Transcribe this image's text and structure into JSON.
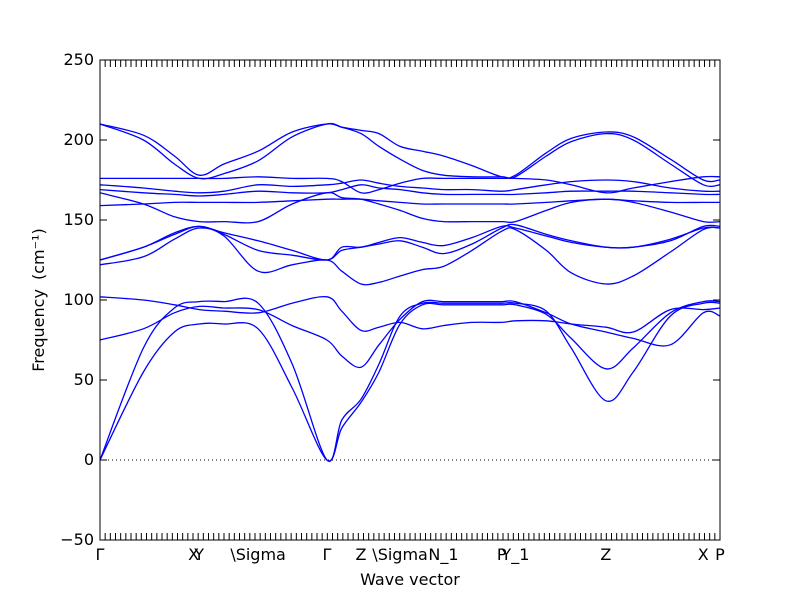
{
  "chart_data": {
    "type": "line",
    "xlabel": "Wave vector",
    "ylabel": "Frequency",
    "ylabel_unit": "(cm⁻¹)",
    "ylim": [
      -50,
      250
    ],
    "y_ticks": [
      -50,
      0,
      50,
      100,
      150,
      200,
      250
    ],
    "xlim": [
      0,
      1
    ],
    "high_symmetry_points": [
      {
        "label": "Γ",
        "x": 0.0
      },
      {
        "label": "X",
        "x": 0.151
      },
      {
        "label": "Y",
        "x": 0.16
      },
      {
        "label": "\\Sigma",
        "x": 0.255
      },
      {
        "label": "Γ",
        "x": 0.366
      },
      {
        "label": "Z",
        "x": 0.421
      },
      {
        "label": "\\Sigma",
        "x": 0.484
      },
      {
        "label": "N_1",
        "x": 0.554
      },
      {
        "label": "P",
        "x": 0.648
      },
      {
        "label": "Y_1",
        "x": 0.67
      },
      {
        "label": "Z",
        "x": 0.816
      },
      {
        "label": "X",
        "x": 0.973
      },
      {
        "label": "P",
        "x": 1.0
      }
    ],
    "zero_line": true,
    "line_color": "#0000ff",
    "series": [
      {
        "x": [
          0.0,
          0.07,
          0.12,
          0.16,
          0.2,
          0.255,
          0.31,
          0.366,
          0.39,
          0.421,
          0.45,
          0.484,
          0.52,
          0.554,
          0.6,
          0.648,
          0.67,
          0.72,
          0.76,
          0.816,
          0.86,
          0.92,
          0.973,
          1.0
        ],
        "values": [
          0,
          70,
          95,
          99,
          99,
          98,
          60,
          0,
          25,
          38,
          60,
          90,
          98,
          98,
          98,
          98,
          98,
          93,
          70,
          37,
          55,
          90,
          98,
          98
        ]
      },
      {
        "x": [
          0.0,
          0.07,
          0.12,
          0.16,
          0.2,
          0.255,
          0.31,
          0.366,
          0.39,
          0.421,
          0.45,
          0.484,
          0.52,
          0.554,
          0.6,
          0.648,
          0.67,
          0.72,
          0.76,
          0.816,
          0.86,
          0.92,
          0.973,
          1.0
        ],
        "values": [
          0,
          55,
          80,
          85,
          85,
          82,
          45,
          0,
          20,
          36,
          55,
          85,
          97,
          97,
          97,
          97,
          97,
          91,
          76,
          57,
          70,
          92,
          99,
          99
        ]
      },
      {
        "x": [
          0.0,
          0.07,
          0.12,
          0.16,
          0.2,
          0.255,
          0.31,
          0.366,
          0.39,
          0.421,
          0.45,
          0.484,
          0.52,
          0.554,
          0.6,
          0.648,
          0.67,
          0.72,
          0.76,
          0.816,
          0.86,
          0.92,
          0.973,
          1.0
        ],
        "values": [
          75,
          82,
          92,
          96,
          95,
          94,
          84,
          75,
          65,
          58,
          72,
          88,
          99,
          99,
          99,
          99,
          99,
          92,
          85,
          80,
          76,
          72,
          92,
          90
        ]
      },
      {
        "x": [
          0.0,
          0.07,
          0.12,
          0.16,
          0.2,
          0.255,
          0.31,
          0.366,
          0.39,
          0.421,
          0.45,
          0.484,
          0.52,
          0.554,
          0.6,
          0.648,
          0.67,
          0.72,
          0.76,
          0.816,
          0.86,
          0.92,
          0.973,
          1.0
        ],
        "values": [
          102,
          100,
          97,
          94,
          93,
          92,
          98,
          102,
          93,
          81,
          83,
          86,
          82,
          84,
          86,
          86,
          87,
          87,
          85,
          83,
          80,
          94,
          94,
          95
        ]
      },
      {
        "x": [
          0.0,
          0.07,
          0.12,
          0.16,
          0.2,
          0.255,
          0.31,
          0.366,
          0.39,
          0.421,
          0.45,
          0.484,
          0.52,
          0.554,
          0.6,
          0.648,
          0.67,
          0.72,
          0.76,
          0.816,
          0.86,
          0.92,
          0.973,
          1.0
        ],
        "values": [
          122,
          127,
          138,
          145,
          140,
          118,
          122,
          125,
          118,
          110,
          111,
          115,
          119,
          121,
          131,
          143,
          144,
          131,
          117,
          110,
          115,
          130,
          144,
          145
        ]
      },
      {
        "x": [
          0.0,
          0.07,
          0.12,
          0.16,
          0.2,
          0.255,
          0.31,
          0.366,
          0.39,
          0.421,
          0.45,
          0.484,
          0.52,
          0.554,
          0.6,
          0.648,
          0.67,
          0.72,
          0.76,
          0.816,
          0.86,
          0.92,
          0.973,
          1.0
        ],
        "values": [
          125,
          133,
          141,
          146,
          141,
          131,
          128,
          125,
          131,
          133,
          135,
          137,
          133,
          129,
          135,
          145,
          147,
          141,
          137,
          133,
          133,
          137,
          146,
          146
        ]
      },
      {
        "x": [
          0.0,
          0.07,
          0.12,
          0.16,
          0.2,
          0.255,
          0.31,
          0.366,
          0.39,
          0.421,
          0.45,
          0.484,
          0.52,
          0.554,
          0.6,
          0.648,
          0.67,
          0.72,
          0.76,
          0.816,
          0.86,
          0.92,
          0.973,
          1.0
        ],
        "values": [
          125,
          133,
          142,
          146,
          142,
          137,
          131,
          125,
          133,
          133,
          136,
          139,
          136,
          134,
          139,
          146,
          145,
          140,
          136,
          133,
          133,
          138,
          145,
          145
        ]
      },
      {
        "x": [
          0.0,
          0.07,
          0.12,
          0.16,
          0.2,
          0.255,
          0.31,
          0.366,
          0.39,
          0.421,
          0.45,
          0.484,
          0.52,
          0.554,
          0.6,
          0.648,
          0.67,
          0.72,
          0.76,
          0.816,
          0.86,
          0.92,
          0.973,
          1.0
        ],
        "values": [
          167,
          160,
          152,
          149,
          149,
          149,
          160,
          167,
          164,
          163,
          160,
          156,
          151,
          149,
          149,
          149,
          149,
          156,
          161,
          163,
          161,
          155,
          149,
          149
        ]
      },
      {
        "x": [
          0.0,
          0.07,
          0.12,
          0.16,
          0.2,
          0.255,
          0.31,
          0.366,
          0.39,
          0.421,
          0.45,
          0.484,
          0.52,
          0.554,
          0.6,
          0.648,
          0.67,
          0.72,
          0.76,
          0.816,
          0.86,
          0.92,
          0.973,
          1.0
        ],
        "values": [
          159,
          160,
          161,
          161,
          161,
          161,
          162,
          163,
          163,
          163,
          162,
          161,
          160,
          160,
          160,
          160,
          160,
          161,
          162,
          163,
          162,
          161,
          161,
          161
        ]
      },
      {
        "x": [
          0.0,
          0.07,
          0.12,
          0.16,
          0.2,
          0.255,
          0.31,
          0.366,
          0.39,
          0.421,
          0.45,
          0.484,
          0.52,
          0.554,
          0.6,
          0.648,
          0.67,
          0.72,
          0.76,
          0.816,
          0.86,
          0.92,
          0.973,
          1.0
        ],
        "values": [
          169,
          167,
          166,
          165,
          166,
          168,
          167,
          167,
          169,
          172,
          170,
          169,
          167,
          166,
          166,
          166,
          166,
          167,
          168,
          168,
          168,
          167,
          166,
          166
        ]
      },
      {
        "x": [
          0.0,
          0.07,
          0.12,
          0.16,
          0.2,
          0.255,
          0.31,
          0.366,
          0.39,
          0.421,
          0.45,
          0.484,
          0.52,
          0.554,
          0.6,
          0.648,
          0.67,
          0.72,
          0.76,
          0.816,
          0.86,
          0.92,
          0.973,
          1.0
        ],
        "values": [
          172,
          170,
          168,
          167,
          168,
          172,
          171,
          172,
          173,
          175,
          173,
          171,
          170,
          169,
          169,
          168,
          169,
          172,
          174,
          175,
          174,
          170,
          168,
          168
        ]
      },
      {
        "x": [
          0.0,
          0.07,
          0.12,
          0.16,
          0.2,
          0.255,
          0.31,
          0.366,
          0.39,
          0.421,
          0.45,
          0.484,
          0.52,
          0.554,
          0.6,
          0.648,
          0.67,
          0.72,
          0.76,
          0.816,
          0.86,
          0.92,
          0.973,
          1.0
        ],
        "values": [
          176,
          176,
          176,
          176,
          176,
          177,
          176,
          176,
          174,
          167,
          169,
          173,
          176,
          176,
          176,
          176,
          176,
          175,
          172,
          167,
          170,
          174,
          177,
          177
        ]
      },
      {
        "x": [
          0.0,
          0.07,
          0.12,
          0.16,
          0.2,
          0.255,
          0.31,
          0.366,
          0.39,
          0.421,
          0.45,
          0.484,
          0.52,
          0.554,
          0.6,
          0.648,
          0.67,
          0.72,
          0.76,
          0.816,
          0.86,
          0.92,
          0.973,
          1.0
        ],
        "values": [
          210,
          200,
          185,
          176,
          179,
          187,
          202,
          210,
          208,
          204,
          196,
          188,
          181,
          178,
          177,
          177,
          177,
          190,
          199,
          204,
          200,
          185,
          172,
          172
        ]
      },
      {
        "x": [
          0.0,
          0.07,
          0.12,
          0.16,
          0.2,
          0.255,
          0.31,
          0.366,
          0.39,
          0.421,
          0.45,
          0.484,
          0.52,
          0.554,
          0.6,
          0.648,
          0.67,
          0.72,
          0.76,
          0.816,
          0.86,
          0.92,
          0.973,
          1.0
        ],
        "values": [
          210,
          203,
          190,
          178,
          185,
          193,
          205,
          210,
          208,
          206,
          204,
          196,
          193,
          190,
          184,
          177,
          178,
          192,
          201,
          205,
          202,
          188,
          175,
          175
        ]
      }
    ]
  }
}
